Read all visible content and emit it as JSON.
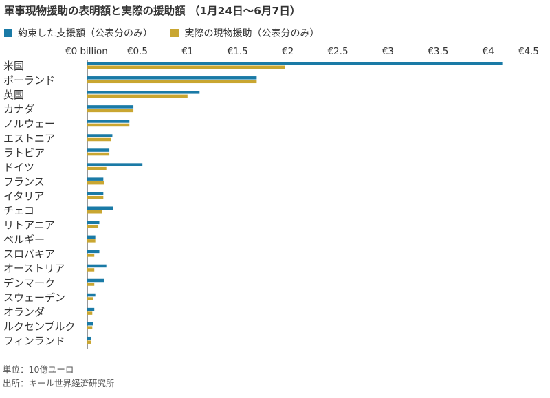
{
  "title": "軍事現物援助の表明額と実際の援助額 （1月24日〜6月7日）",
  "footer": {
    "unit": "単位：10億ユーロ",
    "source": "出所：キール世界経済研究所"
  },
  "colors": {
    "committed": "#1a7aa6",
    "delivered": "#c9a631",
    "axis": "#333333",
    "text": "#333333"
  },
  "chart_data": {
    "type": "bar",
    "orientation": "horizontal",
    "title": "軍事現物援助の表明額と実際の援助額 （1月24日〜6月7日）",
    "legend_position": "top-left",
    "grid": false,
    "xlim": [
      0,
      4.5
    ],
    "x_ticks": [
      0,
      0.5,
      1,
      1.5,
      2,
      2.5,
      3,
      3.5,
      4,
      4.5
    ],
    "x_tick_labels": [
      "€0 billion",
      "€0.5",
      "€1",
      "€1.5",
      "€2",
      "€2.5",
      "€3",
      "€3.5",
      "€4",
      "€4.5"
    ],
    "categories": [
      "米国",
      "ポーランド",
      "英国",
      "カナダ",
      "ノルウェー",
      "エストニア",
      "ラトビア",
      "ドイツ",
      "フランス",
      "イタリア",
      "チェコ",
      "リトアニア",
      "ベルギー",
      "スロバキア",
      "オーストリア",
      "デンマーク",
      "スウェーデン",
      "オランダ",
      "ルクセンブルク",
      "フィンランド"
    ],
    "series": [
      {
        "name": "約束した支援額（公表分のみ）",
        "color": "#1a7aa6",
        "values": [
          4.14,
          1.69,
          1.12,
          0.46,
          0.42,
          0.25,
          0.22,
          0.55,
          0.16,
          0.16,
          0.26,
          0.12,
          0.08,
          0.12,
          0.19,
          0.17,
          0.08,
          0.07,
          0.06,
          0.04
        ]
      },
      {
        "name": "実際の現物援助（公表分のみ）",
        "color": "#c9a631",
        "values": [
          1.97,
          1.69,
          1.0,
          0.46,
          0.42,
          0.24,
          0.22,
          0.19,
          0.17,
          0.16,
          0.15,
          0.11,
          0.08,
          0.07,
          0.07,
          0.07,
          0.06,
          0.05,
          0.05,
          0.04
        ]
      }
    ]
  }
}
